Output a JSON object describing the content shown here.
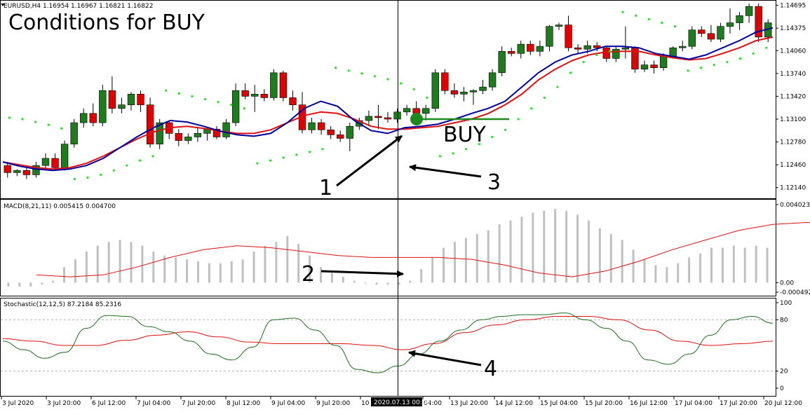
{
  "chart_data": [
    {
      "type": "candlestick",
      "symbol_header": "EURUSD,H4  1.16954 1.16967 1.16821 1.16822",
      "title": "Conditions for BUY",
      "annotation": "BUY",
      "ylim": [
        1.12,
        1.1475
      ],
      "yticks": [
        "1.14695",
        "1.14375",
        "1.14060",
        "1.13740",
        "1.13420",
        "1.13100",
        "1.12780",
        "1.12460",
        "1.12140"
      ],
      "ytick_values": [
        1.14695,
        1.14375,
        1.1406,
        1.1374,
        1.1342,
        1.131,
        1.1278,
        1.1246,
        1.1214
      ],
      "candles": [
        [
          1.1245,
          1.1248,
          1.1228,
          1.1235
        ],
        [
          1.1235,
          1.124,
          1.123,
          1.1238
        ],
        [
          1.1238,
          1.1242,
          1.1226,
          1.1232
        ],
        [
          1.1232,
          1.125,
          1.1228,
          1.1245
        ],
        [
          1.1245,
          1.1262,
          1.124,
          1.1255
        ],
        [
          1.1255,
          1.1262,
          1.1238,
          1.1242
        ],
        [
          1.1242,
          1.128,
          1.1238,
          1.1275
        ],
        [
          1.1275,
          1.131,
          1.127,
          1.1305
        ],
        [
          1.1305,
          1.1325,
          1.1298,
          1.1318
        ],
        [
          1.1318,
          1.1332,
          1.13,
          1.1305
        ],
        [
          1.1305,
          1.1358,
          1.13,
          1.135
        ],
        [
          1.135,
          1.137,
          1.1318,
          1.1325
        ],
        [
          1.1325,
          1.134,
          1.1318,
          1.133
        ],
        [
          1.133,
          1.1348,
          1.1322,
          1.1345
        ],
        [
          1.1345,
          1.135,
          1.132,
          1.133
        ],
        [
          1.133,
          1.134,
          1.127,
          1.1275
        ],
        [
          1.1275,
          1.131,
          1.1268,
          1.1305
        ],
        [
          1.1305,
          1.1308,
          1.1282,
          1.129
        ],
        [
          1.129,
          1.1296,
          1.1272,
          1.128
        ],
        [
          1.128,
          1.129,
          1.1275,
          1.1285
        ],
        [
          1.1285,
          1.1298,
          1.1278,
          1.129
        ],
        [
          1.129,
          1.1298,
          1.128,
          1.1296
        ],
        [
          1.1296,
          1.13,
          1.1282,
          1.1285
        ],
        [
          1.1285,
          1.131,
          1.1282,
          1.1305
        ],
        [
          1.1305,
          1.136,
          1.13,
          1.135
        ],
        [
          1.135,
          1.136,
          1.1338,
          1.1342
        ],
        [
          1.1342,
          1.1358,
          1.132,
          1.1345
        ],
        [
          1.1345,
          1.1352,
          1.1335,
          1.134
        ],
        [
          1.134,
          1.138,
          1.1336,
          1.1375
        ],
        [
          1.1375,
          1.1378,
          1.1335,
          1.134
        ],
        [
          1.134,
          1.135,
          1.1322,
          1.133
        ],
        [
          1.133,
          1.1348,
          1.129,
          1.1295
        ],
        [
          1.1295,
          1.1312,
          1.129,
          1.1305
        ],
        [
          1.1305,
          1.131,
          1.1288,
          1.1295
        ],
        [
          1.1295,
          1.13,
          1.1282,
          1.1288
        ],
        [
          1.1288,
          1.1294,
          1.1278,
          1.1283
        ],
        [
          1.1283,
          1.1305,
          1.1265,
          1.13
        ],
        [
          1.13,
          1.1312,
          1.1295,
          1.1308
        ],
        [
          1.1308,
          1.1322,
          1.13,
          1.1314
        ],
        [
          1.1314,
          1.133,
          1.1296,
          1.1312
        ],
        [
          1.1312,
          1.132,
          1.1305,
          1.131
        ],
        [
          1.131,
          1.1325,
          1.1305,
          1.132
        ],
        [
          1.132,
          1.133,
          1.1315,
          1.1325
        ],
        [
          1.1325,
          1.1335,
          1.1312,
          1.1318
        ],
        [
          1.1318,
          1.133,
          1.1308,
          1.1325
        ],
        [
          1.1325,
          1.138,
          1.132,
          1.1375
        ],
        [
          1.1375,
          1.138,
          1.1345,
          1.135
        ],
        [
          1.135,
          1.136,
          1.134,
          1.1345
        ],
        [
          1.1345,
          1.1355,
          1.1335,
          1.1348
        ],
        [
          1.1348,
          1.1352,
          1.133,
          1.135
        ],
        [
          1.135,
          1.1365,
          1.1345,
          1.1355
        ],
        [
          1.1355,
          1.138,
          1.135,
          1.1375
        ],
        [
          1.1375,
          1.1412,
          1.137,
          1.1405
        ],
        [
          1.1405,
          1.141,
          1.1398,
          1.1402
        ],
        [
          1.1402,
          1.142,
          1.1395,
          1.1415
        ],
        [
          1.1415,
          1.142,
          1.14,
          1.1405
        ],
        [
          1.1405,
          1.142,
          1.1398,
          1.1412
        ],
        [
          1.1412,
          1.1442,
          1.1405,
          1.144
        ],
        [
          1.144,
          1.1445,
          1.1435,
          1.1442
        ],
        [
          1.1442,
          1.1455,
          1.1405,
          1.141
        ],
        [
          1.141,
          1.1415,
          1.1402,
          1.1408
        ],
        [
          1.1408,
          1.142,
          1.1402,
          1.1413
        ],
        [
          1.1413,
          1.1418,
          1.1405,
          1.141
        ],
        [
          1.141,
          1.1412,
          1.139,
          1.1395
        ],
        [
          1.1395,
          1.1412,
          1.139,
          1.1408
        ],
        [
          1.1408,
          1.144,
          1.1395,
          1.141
        ],
        [
          1.141,
          1.1412,
          1.1375,
          1.138
        ],
        [
          1.138,
          1.1392,
          1.1376,
          1.1386
        ],
        [
          1.1386,
          1.1392,
          1.1374,
          1.1382
        ],
        [
          1.1382,
          1.1402,
          1.1378,
          1.1398
        ],
        [
          1.1398,
          1.1412,
          1.1395,
          1.141
        ],
        [
          1.141,
          1.142,
          1.1405,
          1.1412
        ],
        [
          1.1412,
          1.144,
          1.1408,
          1.1435
        ],
        [
          1.1435,
          1.144,
          1.1425,
          1.143
        ],
        [
          1.143,
          1.1442,
          1.1418,
          1.1422
        ],
        [
          1.1422,
          1.1445,
          1.1418,
          1.144
        ],
        [
          1.144,
          1.1465,
          1.143,
          1.1445
        ],
        [
          1.1445,
          1.146,
          1.1435,
          1.1455
        ],
        [
          1.1455,
          1.1472,
          1.1445,
          1.1468
        ],
        [
          1.1468,
          1.1472,
          1.1418,
          1.1425
        ],
        [
          1.1425,
          1.145,
          1.1418,
          1.1445
        ]
      ],
      "ma_blue": [
        1.125,
        1.1244,
        1.124,
        1.1238,
        1.124,
        1.1245,
        1.1255,
        1.127,
        1.1285,
        1.1298,
        1.1308,
        1.1306,
        1.13,
        1.1293,
        1.1288,
        1.1286,
        1.129,
        1.1305,
        1.1325,
        1.1335,
        1.1328,
        1.1308,
        1.1294,
        1.129,
        1.1298,
        1.13,
        1.1303,
        1.131,
        1.1318,
        1.1325,
        1.1335,
        1.1355,
        1.1375,
        1.139,
        1.14,
        1.1405,
        1.1412,
        1.1412,
        1.141,
        1.1402,
        1.1398,
        1.1394,
        1.14,
        1.141,
        1.142,
        1.1432,
        1.1438
      ],
      "ma_red": [
        1.125,
        1.1246,
        1.1242,
        1.124,
        1.1242,
        1.1248,
        1.1258,
        1.127,
        1.1282,
        1.1292,
        1.1298,
        1.13,
        1.1297,
        1.1293,
        1.129,
        1.129,
        1.1295,
        1.1305,
        1.1315,
        1.132,
        1.1318,
        1.131,
        1.13,
        1.1296,
        1.1296,
        1.1298,
        1.13,
        1.1305,
        1.131,
        1.1318,
        1.133,
        1.1345,
        1.1365,
        1.138,
        1.1392,
        1.14,
        1.1404,
        1.1405,
        1.1405,
        1.14,
        1.1396,
        1.1393,
        1.1395,
        1.1402,
        1.141,
        1.142,
        1.1425
      ],
      "sar": [
        1.1312,
        1.131,
        1.1306,
        1.1302,
        1.1297,
        1.1226,
        1.1228,
        1.1232,
        1.1238,
        1.1245,
        1.1252,
        1.1258,
        1.135,
        1.1346,
        1.1342,
        1.1338,
        1.1334,
        1.133,
        1.1325,
        1.1248,
        1.1252,
        1.1256,
        1.126,
        1.1264,
        1.1268,
        1.1382,
        1.1378,
        1.1374,
        1.137,
        1.1366,
        1.136,
        1.1352,
        1.134,
        1.1258,
        1.1262,
        1.1268,
        1.1275,
        1.1285,
        1.1295,
        1.131,
        1.1325,
        1.134,
        1.1355,
        1.1375,
        1.139,
        1.14,
        1.1405,
        1.146,
        1.1455,
        1.145,
        1.1445,
        1.144,
        1.1378,
        1.1382,
        1.1386,
        1.139,
        1.1395,
        1.1402,
        1.141
      ]
    },
    {
      "type": "bar+line",
      "label": "MACD(8,21,11) 0.005415 0.004700",
      "ylim": [
        -0.0006,
        0.0042
      ],
      "yticks": [
        "0.004023",
        "0.00",
        "-0.000492"
      ],
      "ytick_values": [
        0.004023,
        0.0,
        -0.000492
      ],
      "histogram": [
        -0.0002,
        -0.0002,
        -0.0002,
        -0.0001,
        0.0001,
        0.0008,
        0.0012,
        0.0016,
        0.0019,
        0.0021,
        0.0022,
        0.0021,
        0.0019,
        0.0016,
        0.0014,
        0.0013,
        0.0012,
        0.0011,
        0.001,
        0.001,
        0.0011,
        0.0012,
        0.0016,
        0.0019,
        0.0021,
        0.0024,
        0.002,
        0.0014,
        0.0008,
        0.0005,
        0.0003,
        0.0001,
        0.0,
        -0.0001,
        -0.0001,
        -0.0001,
        0.0001,
        0.0007,
        0.0013,
        0.0018,
        0.0021,
        0.0023,
        0.0025,
        0.0027,
        0.003,
        0.0032,
        0.0034,
        0.0036,
        0.0037,
        0.0038,
        0.0037,
        0.0035,
        0.0032,
        0.0028,
        0.0025,
        0.0022,
        0.0017,
        0.0012,
        0.0009,
        0.0008,
        0.001,
        0.0013,
        0.0015,
        0.0018,
        0.0018,
        0.0019,
        0.0018,
        0.0019,
        0.0018
      ],
      "signal": [
        0.0004,
        0.0003,
        0.0004,
        0.0008,
        0.0013,
        0.0017,
        0.0019,
        0.0018,
        0.0016,
        0.0014,
        0.0013,
        0.0013,
        0.0013,
        0.0012,
        0.0009,
        0.0005,
        0.0003,
        0.0006,
        0.0011,
        0.0017,
        0.0022,
        0.0027,
        0.003,
        0.0031,
        0.003,
        0.0026,
        0.0021,
        0.0018,
        0.0016,
        0.0016
      ],
      "signal_x": [
        3,
        6,
        9,
        12,
        15,
        18,
        21,
        24,
        27,
        30,
        33,
        36,
        39,
        42,
        45,
        48,
        51,
        54,
        57,
        60,
        63,
        66,
        69,
        72,
        75,
        78,
        81,
        84,
        87,
        89
      ]
    },
    {
      "type": "line",
      "label": "Stochastic(12,12,5) 87.2184 85.2316",
      "ylim": [
        0,
        100
      ],
      "yticks": [
        "100",
        "80",
        "20",
        "0"
      ],
      "ytick_values": [
        100,
        80,
        20,
        0
      ],
      "levels": [
        80,
        20
      ],
      "k": [
        55,
        45,
        35,
        42,
        70,
        85,
        84,
        72,
        66,
        55,
        40,
        33,
        48,
        80,
        82,
        68,
        50,
        22,
        18,
        26,
        40,
        55,
        68,
        80,
        84,
        86,
        86,
        88,
        80,
        70,
        55,
        33,
        28,
        40,
        62,
        80,
        84,
        76
      ],
      "d": [
        58,
        55,
        50,
        50,
        56,
        62,
        66,
        60,
        54,
        52,
        52,
        52,
        50,
        45,
        52,
        65,
        74,
        80,
        84,
        84,
        80,
        68,
        55,
        50,
        52,
        55
      ]
    }
  ],
  "labels": {
    "callout_1": "1",
    "callout_2": "2",
    "callout_3": "3",
    "callout_4": "4"
  },
  "xaxis": {
    "ticks": [
      "3 Jul 2020",
      "3 Jul 20:00",
      "6 Jul 12:00",
      "7 Jul 04:00",
      "7 Jul 20:00",
      "8 Jul 12:00",
      "9 Jul 04:00",
      "9 Jul 20:00",
      "10 J",
      "04:00",
      "13 Jul 20:00",
      "14 Jul 12:00",
      "15 Jul 04:00",
      "15 Jul 20:00",
      "16 Jul 12:00",
      "17 Jul 04:00",
      "17 Jul 20:00",
      "20 Jul 12:00"
    ],
    "crosshair_label": "2020.07.13 00:00"
  },
  "colors": {
    "bull": "#1e7b1e",
    "bear": "#e00000",
    "ma_blue": "#0000a0",
    "ma_red": "#e01010",
    "sar": "#22e022",
    "hist": "#c0c0c0",
    "stoch_k": "#1e6e1e",
    "stoch_d": "#e01010"
  }
}
